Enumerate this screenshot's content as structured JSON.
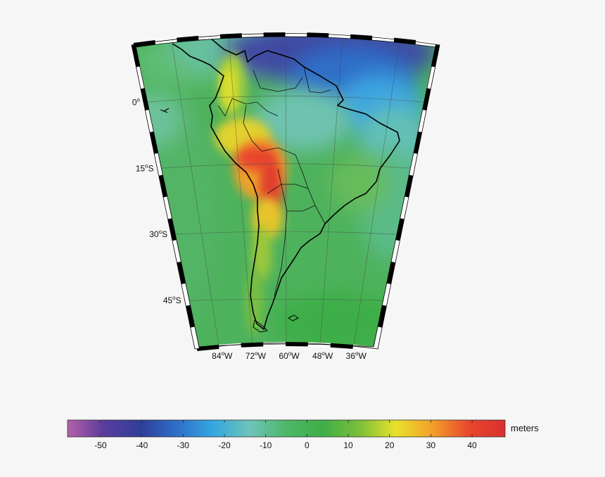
{
  "map": {
    "projection": "conic",
    "region": "South America",
    "graticule": true,
    "frame": "black-white ticks",
    "lat_labels": [
      {
        "value": 0,
        "text": "0",
        "suffix": ""
      },
      {
        "value": -15,
        "text": "15",
        "suffix": "S"
      },
      {
        "value": -30,
        "text": "30",
        "suffix": "S"
      },
      {
        "value": -45,
        "text": "45",
        "suffix": "S"
      }
    ],
    "lon_labels": [
      {
        "value": -84,
        "text": "84",
        "suffix": "W"
      },
      {
        "value": -72,
        "text": "72",
        "suffix": "W"
      },
      {
        "value": -60,
        "text": "60",
        "suffix": "W"
      },
      {
        "value": -48,
        "text": "48",
        "suffix": "W"
      },
      {
        "value": -36,
        "text": "36",
        "suffix": "W"
      }
    ],
    "degree_symbol": "o"
  },
  "colorbar": {
    "unit": "meters",
    "min": -58,
    "max": 48,
    "ticks": [
      -50,
      -40,
      -30,
      -20,
      -10,
      0,
      10,
      20,
      30,
      40
    ],
    "tick_labels": [
      "-50",
      "-40",
      "-30",
      "-20",
      "-10",
      "0",
      "10",
      "20",
      "30",
      "40"
    ],
    "colors": [
      "#b460a8",
      "#5a3c9c",
      "#2e3f98",
      "#2f6ec8",
      "#35a8e0",
      "#6ec3b8",
      "#4db86a",
      "#3eae47",
      "#7bbf3a",
      "#e8e22a",
      "#f2a02a",
      "#e8472d",
      "#d83030"
    ]
  }
}
